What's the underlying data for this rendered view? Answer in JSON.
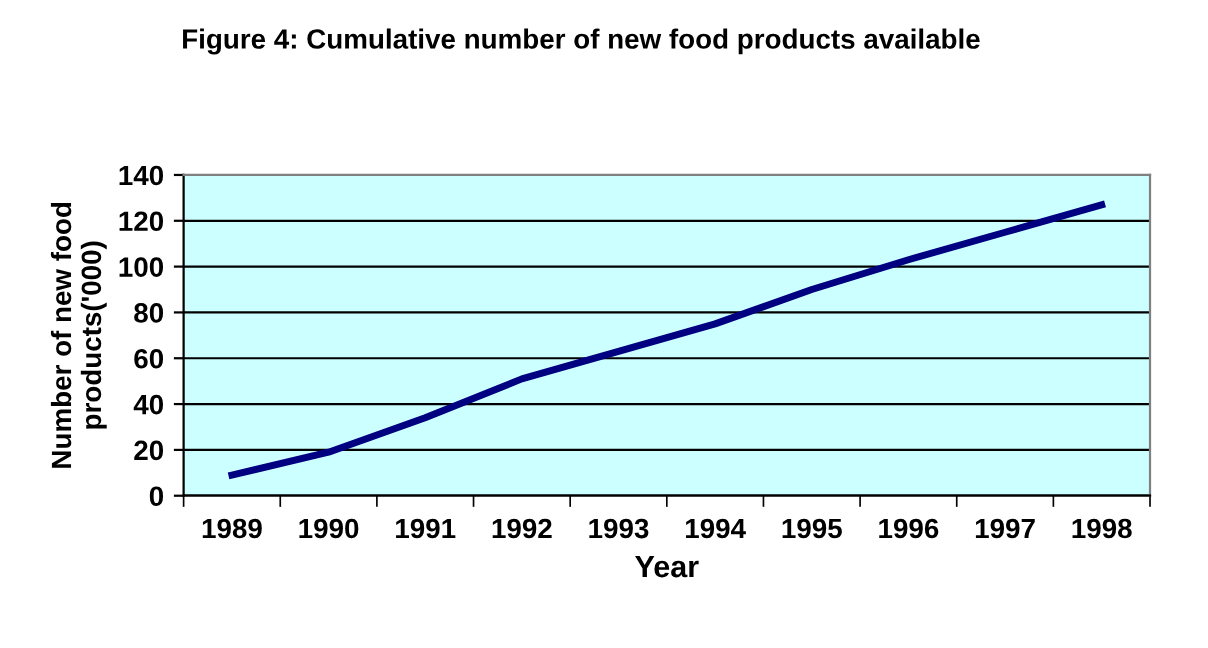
{
  "chart_data": {
    "type": "line",
    "title": "Figure 4: Cumulative number of new food products available",
    "categories": [
      "1989",
      "1990",
      "1991",
      "1992",
      "1993",
      "1994",
      "1995",
      "1996",
      "1997",
      "1998"
    ],
    "series": [
      {
        "color": "#000080",
        "values": [
          9,
          19,
          34,
          51,
          63,
          75,
          90,
          103,
          115,
          127
        ]
      }
    ],
    "xlabel": "Year",
    "ylabel": "Number of new food\nproducts('000)",
    "ylim": [
      0,
      140
    ],
    "yticks": [
      0,
      20,
      40,
      60,
      80,
      100,
      120,
      140
    ],
    "grid": "y",
    "marker": "none",
    "line_style": "solid"
  }
}
